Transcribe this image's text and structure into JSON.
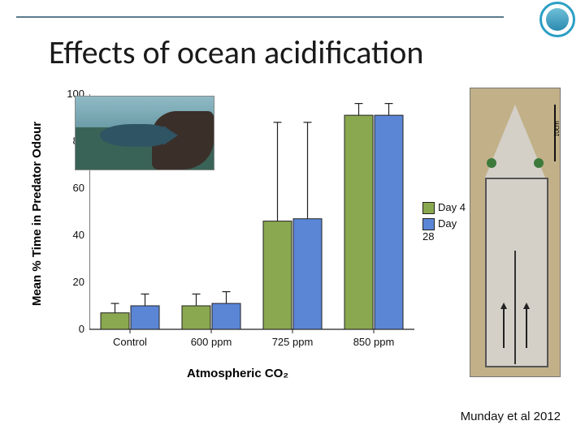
{
  "title": "Effects of ocean acidification",
  "citation": "Munday et al 2012",
  "chart": {
    "type": "bar",
    "ylabel": "Mean % Time in Predator Odour",
    "xlabel": "Atmospheric CO₂",
    "ylim": [
      0,
      100
    ],
    "ytick_step": 20,
    "yticks": [
      0,
      20,
      40,
      60,
      80,
      100
    ],
    "categories": [
      "Control",
      "600 ppm",
      "725 ppm",
      "850 ppm"
    ],
    "series": [
      {
        "name": "Day 4",
        "color": "#8aa84f",
        "values": [
          7,
          10,
          46,
          91
        ],
        "err": [
          4,
          5,
          42,
          5
        ]
      },
      {
        "name": "Day 28",
        "color": "#5b86d6",
        "values": [
          10,
          11,
          47,
          91
        ],
        "err": [
          5,
          5,
          41,
          5
        ]
      }
    ],
    "bar_width": 0.35,
    "axis_color": "#222222",
    "background_color": "#ffffff",
    "label_fontsize": 15,
    "tick_fontsize": 13,
    "font_family": "Arial, sans-serif",
    "legend_position": "right"
  },
  "fish_image": {
    "alt": "coral trout photo"
  },
  "flume_image": {
    "alt": "two-channel flume apparatus",
    "scale_label": "10cm"
  }
}
